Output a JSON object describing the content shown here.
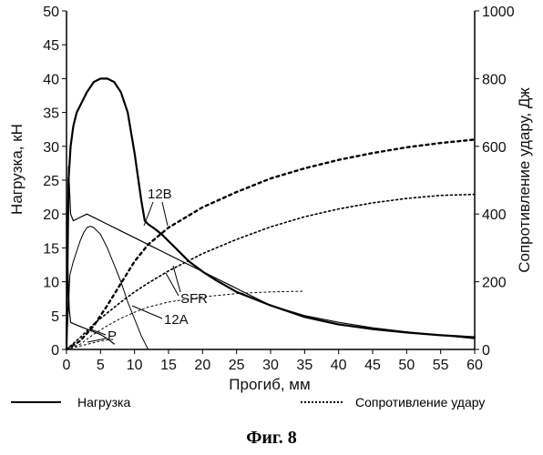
{
  "chart_data": {
    "type": "line",
    "caption": "Фиг. 8",
    "xlabel": "Прогиб, мм",
    "ylabel_left": "Нагрузка, кН",
    "ylabel_right": "Сопротивление удару, Дж",
    "xlim": [
      0,
      60
    ],
    "ylim_left": [
      0,
      50
    ],
    "ylim_right": [
      0,
      1000
    ],
    "x_ticks": [
      0,
      5,
      10,
      15,
      20,
      25,
      30,
      35,
      40,
      45,
      50,
      55,
      60
    ],
    "y_left_ticks": [
      0,
      5,
      10,
      15,
      20,
      25,
      30,
      35,
      40,
      45,
      50
    ],
    "y_right_ticks": [
      0,
      200,
      400,
      600,
      800,
      1000
    ],
    "grid": false,
    "legend": [
      {
        "label": "Нагрузка",
        "style": "solid"
      },
      {
        "label": "Сопротивление удару",
        "style": "dotted"
      }
    ],
    "annotations": [
      "12B",
      "SFR",
      "12A",
      "P"
    ],
    "series": [
      {
        "id": "load-12B",
        "axis": "left",
        "style": "solid",
        "width": 2.2,
        "x": [
          0,
          0.3,
          0.6,
          1,
          1.5,
          2,
          3,
          4,
          5,
          6,
          7,
          8,
          9,
          10,
          11,
          11.5,
          12,
          13,
          14,
          15,
          16,
          17,
          18,
          20,
          22,
          25,
          30,
          35,
          40,
          45,
          50,
          55,
          60
        ],
        "y": [
          0,
          25,
          30,
          33,
          35,
          36,
          38,
          39.5,
          40,
          40,
          39.5,
          38,
          35,
          29,
          22,
          19,
          18.5,
          17.8,
          17,
          16,
          15,
          14,
          13,
          11.5,
          10.2,
          8.5,
          6.5,
          4.8,
          3.7,
          3.0,
          2.5,
          2.1,
          1.8
        ]
      },
      {
        "id": "load-SFR",
        "axis": "left",
        "style": "solid",
        "width": 1.2,
        "x": [
          0,
          0.3,
          0.6,
          1,
          2,
          3,
          4,
          5,
          6,
          8,
          10,
          12,
          14,
          16,
          18,
          20,
          25,
          30,
          35,
          40,
          45,
          50,
          55,
          60
        ],
        "y": [
          0,
          27,
          20,
          19,
          19.5,
          20,
          19.5,
          19,
          18.5,
          17.5,
          16.5,
          15.5,
          14.5,
          13.5,
          12.5,
          11.5,
          9,
          6.5,
          5,
          4,
          3.2,
          2.6,
          2.1,
          1.6
        ]
      },
      {
        "id": "load-12A",
        "axis": "left",
        "style": "solid",
        "width": 1.0,
        "x": [
          0,
          0.5,
          1,
          1.5,
          2,
          2.5,
          3,
          3.5,
          4,
          5,
          6,
          7,
          8,
          9,
          10,
          11,
          12
        ],
        "y": [
          0,
          11,
          13,
          14.5,
          16,
          17.2,
          18,
          18.2,
          18,
          17,
          15,
          12.5,
          10,
          7,
          4.5,
          2,
          0
        ]
      },
      {
        "id": "load-P",
        "axis": "left",
        "style": "solid",
        "width": 1.2,
        "x": [
          0,
          0.2,
          0.4,
          0.6,
          1,
          1.5,
          2,
          3,
          4,
          5,
          6,
          7
        ],
        "y": [
          0,
          12,
          6,
          4,
          3.8,
          3.6,
          3.4,
          3.0,
          2.6,
          2.2,
          1.6,
          0.8
        ]
      },
      {
        "id": "energy-12B",
        "axis": "right",
        "style": "dotted",
        "width": 2.4,
        "x": [
          0,
          2,
          4,
          6,
          8,
          10,
          12,
          15,
          20,
          25,
          30,
          35,
          40,
          45,
          50,
          55,
          60
        ],
        "y": [
          0,
          25,
          70,
          130,
          195,
          260,
          310,
          360,
          420,
          465,
          505,
          535,
          560,
          580,
          597,
          610,
          620
        ]
      },
      {
        "id": "energy-SFR",
        "axis": "right",
        "style": "dotted",
        "width": 1.6,
        "x": [
          0,
          2,
          4,
          6,
          8,
          10,
          12,
          15,
          20,
          25,
          30,
          35,
          40,
          45,
          50,
          55,
          60
        ],
        "y": [
          0,
          35,
          75,
          108,
          140,
          170,
          196,
          232,
          283,
          325,
          362,
          392,
          415,
          433,
          446,
          455,
          458
        ]
      },
      {
        "id": "energy-12A",
        "axis": "right",
        "style": "dotted",
        "width": 1.0,
        "x": [
          0,
          2,
          4,
          6,
          8,
          10,
          12,
          15,
          20,
          25,
          30,
          35
        ],
        "y": [
          0,
          15,
          45,
          70,
          92,
          110,
          125,
          140,
          155,
          165,
          170,
          172
        ]
      },
      {
        "id": "energy-P",
        "axis": "right",
        "style": "dotted",
        "width": 1.0,
        "x": [
          0,
          1,
          2,
          3,
          4,
          5,
          6,
          7
        ],
        "y": [
          0,
          5,
          10,
          15,
          20,
          25,
          28,
          30
        ]
      }
    ]
  }
}
